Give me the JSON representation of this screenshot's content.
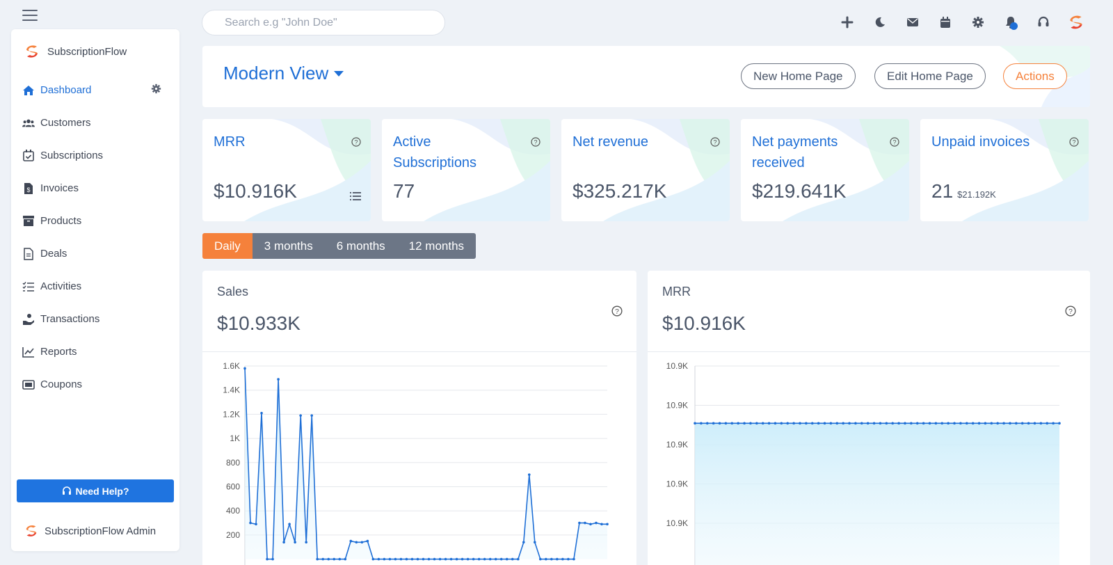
{
  "brand": {
    "name": "SubscriptionFlow",
    "admin_label": "SubscriptionFlow Admin",
    "accent": "#1f6fd6",
    "orange": "#f5813b"
  },
  "search": {
    "placeholder": "Search e.g \"John Doe\""
  },
  "sidebar": {
    "items": [
      {
        "label": "Dashboard",
        "icon": "home-icon",
        "active": true
      },
      {
        "label": "Customers",
        "icon": "users-icon"
      },
      {
        "label": "Subscriptions",
        "icon": "calendar-check-icon"
      },
      {
        "label": "Invoices",
        "icon": "invoice-icon"
      },
      {
        "label": "Products",
        "icon": "archive-icon"
      },
      {
        "label": "Deals",
        "icon": "document-icon"
      },
      {
        "label": "Activities",
        "icon": "checklist-icon"
      },
      {
        "label": "Transactions",
        "icon": "hand-coin-icon"
      },
      {
        "label": "Reports",
        "icon": "chart-line-icon"
      },
      {
        "label": "Coupons",
        "icon": "ticket-icon"
      }
    ],
    "help_label": "Need Help?"
  },
  "topbar": {
    "icons": [
      "plus-icon",
      "moon-icon",
      "mail-icon",
      "calendar-icon",
      "gear-icon",
      "bell-icon",
      "headset-icon",
      "brand-logo-icon"
    ]
  },
  "header": {
    "view_title": "Modern View",
    "new_home_label": "New Home Page",
    "edit_home_label": "Edit Home Page",
    "actions_label": "Actions"
  },
  "stats": {
    "mrr": {
      "label": "MRR",
      "value": "$10.916K"
    },
    "active_subs": {
      "label": "Active Subscriptions",
      "value": "77"
    },
    "net_revenue": {
      "label": "Net revenue",
      "value": "$325.217K"
    },
    "net_payments": {
      "label": "Net payments received",
      "value": "$219.641K"
    },
    "unpaid": {
      "label": "Unpaid invoices",
      "value": "21",
      "sub": "$21.192K"
    }
  },
  "periods": [
    "Daily",
    "3 months",
    "6 months",
    "12 months"
  ],
  "sales_card": {
    "title": "Sales",
    "value": "$10.933K"
  },
  "mrr_card": {
    "title": "MRR",
    "value": "$10.916K"
  },
  "chart_data": [
    {
      "type": "area",
      "title": "Sales",
      "ylim": [
        0,
        1600
      ],
      "yticks": [
        "1.6K",
        "1.4K",
        "1.2K",
        "1K",
        "800",
        "600",
        "400",
        "200"
      ],
      "ytick_values": [
        1600,
        1400,
        1200,
        1000,
        800,
        600,
        400,
        200
      ],
      "values": [
        1580,
        300,
        290,
        1210,
        0,
        0,
        1490,
        140,
        290,
        140,
        1190,
        140,
        1190,
        0,
        0,
        0,
        0,
        0,
        0,
        150,
        140,
        140,
        150,
        0,
        0,
        0,
        0,
        0,
        0,
        0,
        0,
        0,
        0,
        0,
        0,
        0,
        0,
        0,
        0,
        0,
        0,
        0,
        0,
        0,
        0,
        0,
        0,
        0,
        0,
        0,
        140,
        700,
        140,
        0,
        0,
        0,
        0,
        0,
        0,
        0,
        300,
        300,
        290,
        300,
        290,
        290
      ],
      "color": "#1f6fd6"
    },
    {
      "type": "area",
      "title": "MRR",
      "yticks": [
        "10.9K",
        "10.9K",
        "10.9K",
        "10.9K",
        "10.9K"
      ],
      "value_level": 0.51,
      "points": 60,
      "color": "#1f6fd6"
    }
  ]
}
